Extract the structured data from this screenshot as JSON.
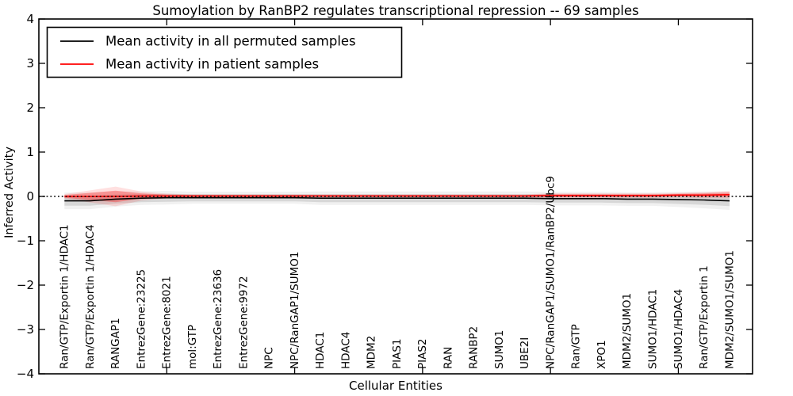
{
  "title": "Sumoylation by RanBP2 regulates transcriptional repression -- 69 samples",
  "axes": {
    "xlabel": "Cellular Entities",
    "ylabel": "Inferred Activity",
    "yticks": [
      4,
      3,
      2,
      1,
      0,
      -1,
      -2,
      -3,
      -4
    ]
  },
  "legend": {
    "entries": [
      {
        "label": "Mean activity in all permuted samples",
        "color": "#000000"
      },
      {
        "label": "Mean activity in patient samples",
        "color": "#ff0000"
      }
    ]
  },
  "colors": {
    "permuted_line": "#000000",
    "patient_line": "#ff0000",
    "permuted_band": "rgba(80,80,80,0.16)",
    "permuted_band_halo": "rgba(80,80,80,0.08)",
    "patient_band": "rgba(255,0,0,0.30)",
    "patient_band_halo": "rgba(255,0,0,0.12)",
    "zero_line": "#000000",
    "frame": "#000000"
  },
  "chart_data": {
    "type": "line",
    "title": "Sumoylation by RanBP2 regulates transcriptional repression -- 69 samples",
    "xlabel": "Cellular Entities",
    "ylabel": "Inferred Activity",
    "ylim": [
      -4,
      4
    ],
    "grid": false,
    "legend_position": "upper left",
    "zero_reference_line": true,
    "categories": [
      "Ran/GTP/Exportin 1/HDAC1",
      "Ran/GTP/Exportin 1/HDAC4",
      "RANGAP1",
      "EntrezGene:23225",
      "EntrezGene:8021",
      "mol:GTP",
      "EntrezGene:23636",
      "EntrezGene:9972",
      "NPC",
      "NPC/RanGAP1/SUMO1",
      "HDAC1",
      "HDAC4",
      "MDM2",
      "PIAS1",
      "PIAS2",
      "RAN",
      "RANBP2",
      "SUMO1",
      "UBE2I",
      "NPC/RanGAP1/SUMO1/RanBP2/Ubc9",
      "Ran/GTP",
      "XPO1",
      "MDM2/SUMO1",
      "SUMO1/HDAC1",
      "SUMO1/HDAC4",
      "Ran/GTP/Exportin 1",
      "MDM2/SUMO1/SUMO1"
    ],
    "series": [
      {
        "name": "Mean activity in all permuted samples",
        "values": [
          -0.1,
          -0.1,
          -0.06,
          -0.04,
          -0.03,
          -0.03,
          -0.03,
          -0.03,
          -0.03,
          -0.03,
          -0.04,
          -0.04,
          -0.04,
          -0.04,
          -0.04,
          -0.04,
          -0.04,
          -0.04,
          -0.04,
          -0.05,
          -0.05,
          -0.05,
          -0.06,
          -0.06,
          -0.07,
          -0.08,
          -0.1
        ],
        "band_halfwidth": [
          0.11,
          0.11,
          0.1,
          0.09,
          0.09,
          0.08,
          0.08,
          0.08,
          0.08,
          0.08,
          0.09,
          0.09,
          0.09,
          0.09,
          0.09,
          0.09,
          0.09,
          0.09,
          0.09,
          0.09,
          0.09,
          0.09,
          0.09,
          0.09,
          0.1,
          0.11,
          0.12
        ]
      },
      {
        "name": "Mean activity in patient samples",
        "values": [
          0.0,
          0.0,
          0.0,
          0.01,
          0.01,
          0.01,
          0.01,
          0.01,
          0.01,
          0.01,
          0.01,
          0.01,
          0.01,
          0.01,
          0.01,
          0.01,
          0.01,
          0.01,
          0.01,
          0.02,
          0.02,
          0.02,
          0.02,
          0.02,
          0.03,
          0.03,
          0.04
        ],
        "band_halfwidth": [
          0.03,
          0.08,
          0.13,
          0.06,
          0.03,
          0.02,
          0.02,
          0.02,
          0.02,
          0.02,
          0.02,
          0.02,
          0.02,
          0.02,
          0.02,
          0.02,
          0.02,
          0.02,
          0.02,
          0.03,
          0.03,
          0.03,
          0.03,
          0.03,
          0.03,
          0.04,
          0.05
        ]
      }
    ]
  }
}
